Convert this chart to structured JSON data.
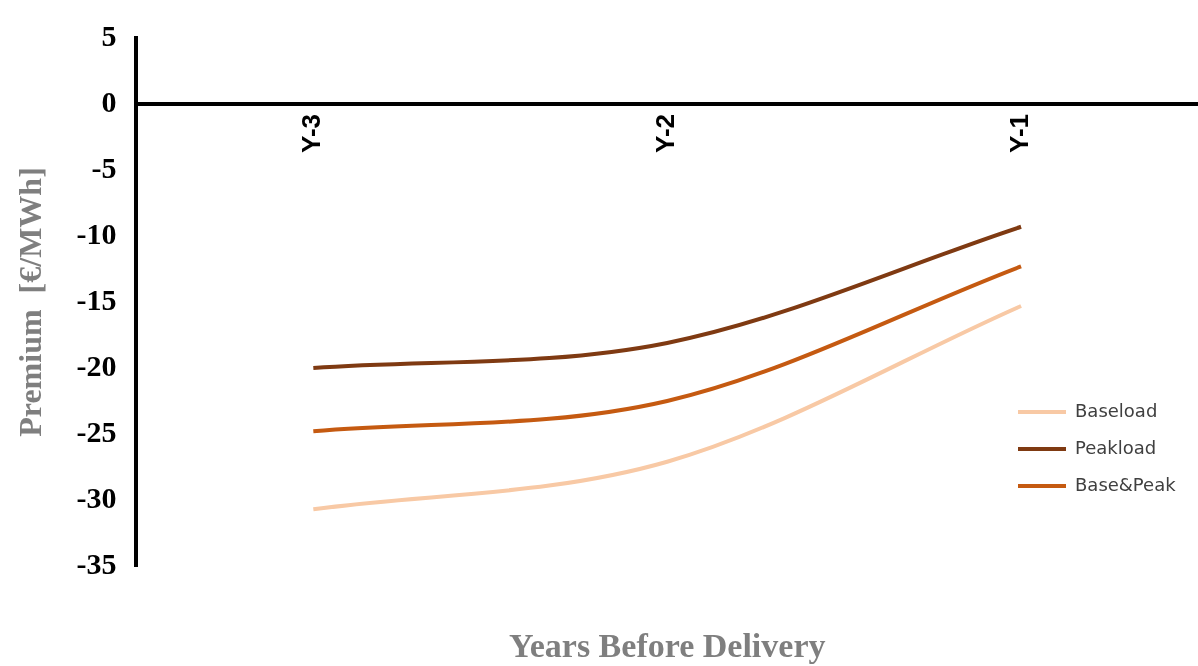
{
  "chart_data": {
    "type": "line",
    "xlabel": "Years Before Delivery",
    "ylabel": "Premium  [€/MWh]",
    "categories": [
      "Y-3",
      "Y-2",
      "Y-1"
    ],
    "series": [
      {
        "name": "Baseload",
        "color": "#f8c9a5",
        "values": [
          -30.7,
          -27.1,
          -15.3
        ]
      },
      {
        "name": "Peakload",
        "color": "#7f3a12",
        "values": [
          -20,
          -18.1,
          -9.3
        ]
      },
      {
        "name": "Base&Peak",
        "color": "#c55a11",
        "values": [
          -24.8,
          -22.5,
          -12.3
        ]
      }
    ],
    "ylim": [
      -35,
      5
    ],
    "yticks": [
      5,
      0,
      -5,
      -10,
      -15,
      -20,
      -25,
      -30,
      -35
    ],
    "grid": false,
    "legend": "bottom right",
    "marker": "none",
    "line_style": "solid"
  }
}
